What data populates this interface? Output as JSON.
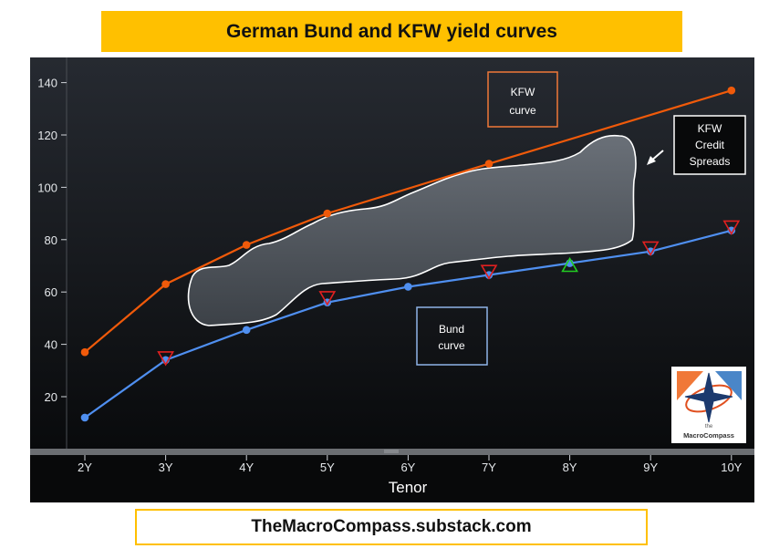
{
  "title": "German Bund and KFW yield curves",
  "footer": "TheMacroCompass.substack.com",
  "logo": {
    "caption_small": "the",
    "caption": "MacroCompass"
  },
  "colors": {
    "banner": "#ffc000",
    "kfw": "#f05a0a",
    "bund": "#4f8ff0",
    "bg_top": "#262a31",
    "bg_bottom": "#050607"
  },
  "chart_data": {
    "type": "line",
    "categories": [
      "2Y",
      "3Y",
      "4Y",
      "5Y",
      "6Y",
      "7Y",
      "8Y",
      "9Y",
      "10Y"
    ],
    "xlabel": "Tenor",
    "ylabel": "",
    "ylim": [
      0,
      145
    ],
    "yticks": [
      20,
      40,
      60,
      80,
      100,
      120,
      140
    ],
    "grid": false,
    "series": [
      {
        "key": "kfw",
        "values": [
          37,
          63,
          78,
          90,
          null,
          109,
          null,
          null,
          137
        ]
      },
      {
        "key": "bund",
        "values": [
          12,
          34,
          45.5,
          56,
          62,
          66.5,
          71,
          75.5,
          83.5
        ]
      }
    ],
    "markers": [
      {
        "category": "3Y",
        "value": 35,
        "shape": "triangle-down",
        "color": "#e02020"
      },
      {
        "category": "5Y",
        "value": 58,
        "shape": "triangle-down",
        "color": "#e02020"
      },
      {
        "category": "7Y",
        "value": 68,
        "shape": "triangle-down",
        "color": "#e02020"
      },
      {
        "category": "8Y",
        "value": 70,
        "shape": "triangle-up",
        "color": "#22cc22"
      },
      {
        "category": "9Y",
        "value": 77,
        "shape": "triangle-down",
        "color": "#e02020"
      },
      {
        "category": "10Y",
        "value": 85,
        "shape": "triangle-down",
        "color": "#e02020"
      }
    ],
    "annotations": {
      "kfw_label": [
        "KFW",
        "curve"
      ],
      "bund_label": [
        "Bund",
        "curve"
      ],
      "spread_label": [
        "KFW",
        "Credit",
        "Spreads"
      ]
    }
  }
}
